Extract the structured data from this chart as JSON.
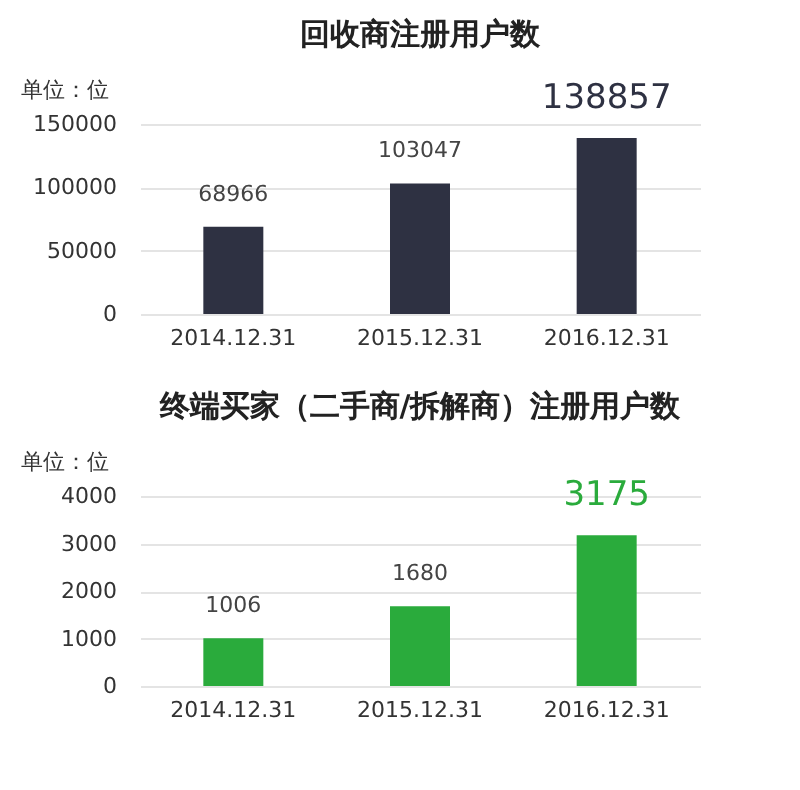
{
  "chart_data": [
    {
      "type": "bar",
      "title": "回收商注册用户数",
      "ylabel": "单位：位",
      "categories": [
        "2014.12.31",
        "2015.12.31",
        "2016.12.31"
      ],
      "values": [
        68966,
        103047,
        138857
      ],
      "color": "#2e3142",
      "ylim": [
        0,
        150000
      ],
      "yticks": [
        0,
        50000,
        100000,
        150000
      ],
      "grid": "y",
      "data_labels": true
    },
    {
      "type": "bar",
      "title": "终端买家（二手商/拆解商）注册用户数",
      "ylabel": "单位：位",
      "categories": [
        "2014.12.31",
        "2015.12.31",
        "2016.12.31"
      ],
      "values": [
        1006,
        1680,
        3175
      ],
      "color": "#2aab3c",
      "ylim": [
        0,
        4000
      ],
      "yticks": [
        0,
        1000,
        2000,
        3000,
        4000
      ],
      "grid": "y",
      "data_labels": true
    }
  ]
}
